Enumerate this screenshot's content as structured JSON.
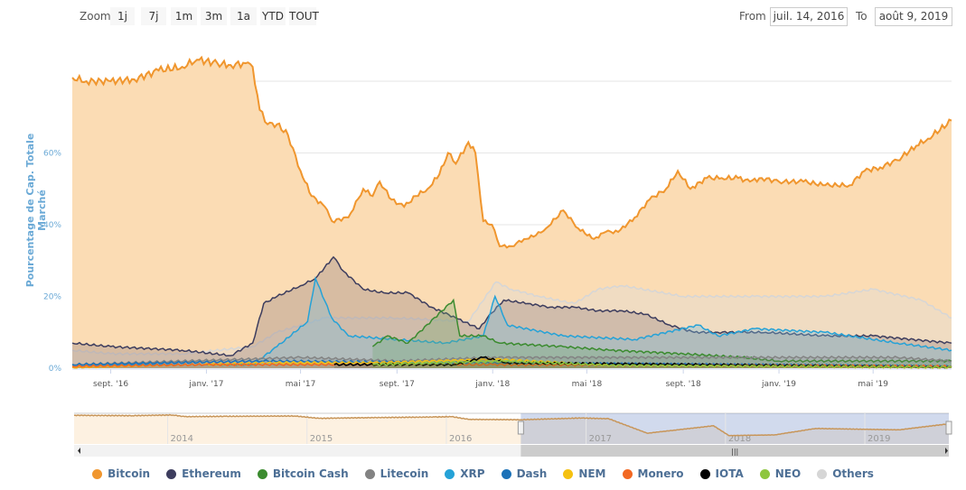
{
  "toolbar": {
    "zoom_label": "Zoom",
    "buttons": [
      "1j",
      "7j",
      "1m",
      "3m",
      "1a",
      "YTD",
      "TOUT"
    ],
    "from_label": "From",
    "from_value": "juil. 14, 2016",
    "to_label": "To",
    "to_value": "août 9, 2019"
  },
  "chart_data": {
    "type": "area",
    "title": "",
    "ylabel": "Pourcentage de Cap. Totale Marché",
    "xlabel": "",
    "xlim": [
      "2016-07-14",
      "2019-08-09"
    ],
    "ylim": [
      0,
      80
    ],
    "yticks": [
      {
        "v": 0,
        "label": "0%"
      },
      {
        "v": 20,
        "label": "20%"
      },
      {
        "v": 40,
        "label": "40%"
      },
      {
        "v": 60,
        "label": "60%"
      }
    ],
    "xticks": [
      {
        "d": "2016-09-01",
        "label": "sept. '16"
      },
      {
        "d": "2017-01-01",
        "label": "janv. '17"
      },
      {
        "d": "2017-05-01",
        "label": "mai '17"
      },
      {
        "d": "2017-09-01",
        "label": "sept. '17"
      },
      {
        "d": "2018-01-01",
        "label": "janv. '18"
      },
      {
        "d": "2018-05-01",
        "label": "mai '18"
      },
      {
        "d": "2018-09-01",
        "label": "sept. '18"
      },
      {
        "d": "2019-01-01",
        "label": "janv. '19"
      },
      {
        "d": "2019-05-01",
        "label": "mai '19"
      }
    ],
    "grid": true,
    "legend_position": "bottom",
    "series": [
      {
        "name": "Bitcoin",
        "color": "#f0962e",
        "fill": "#fbdcb4",
        "points": [
          [
            "2016-07-14",
            81
          ],
          [
            "2016-08-01",
            80
          ],
          [
            "2016-09-01",
            80
          ],
          [
            "2016-10-01",
            80.5
          ],
          [
            "2016-11-01",
            83
          ],
          [
            "2016-12-01",
            84
          ],
          [
            "2016-12-20",
            86
          ],
          [
            "2017-01-15",
            85
          ],
          [
            "2017-02-01",
            84.5
          ],
          [
            "2017-02-20",
            85
          ],
          [
            "2017-03-01",
            84
          ],
          [
            "2017-03-10",
            72
          ],
          [
            "2017-03-20",
            68
          ],
          [
            "2017-04-01",
            68
          ],
          [
            "2017-04-15",
            65
          ],
          [
            "2017-05-01",
            55
          ],
          [
            "2017-05-15",
            48
          ],
          [
            "2017-06-01",
            45
          ],
          [
            "2017-06-10",
            41
          ],
          [
            "2017-07-01",
            42
          ],
          [
            "2017-07-20",
            50
          ],
          [
            "2017-08-01",
            48
          ],
          [
            "2017-08-10",
            52
          ],
          [
            "2017-08-25",
            47
          ],
          [
            "2017-09-10",
            45
          ],
          [
            "2017-09-25",
            48
          ],
          [
            "2017-10-10",
            50
          ],
          [
            "2017-10-25",
            54
          ],
          [
            "2017-11-05",
            60
          ],
          [
            "2017-11-15",
            57
          ],
          [
            "2017-12-01",
            63
          ],
          [
            "2017-12-10",
            60
          ],
          [
            "2017-12-20",
            41
          ],
          [
            "2017-12-31",
            40
          ],
          [
            "2018-01-10",
            34
          ],
          [
            "2018-01-25",
            34
          ],
          [
            "2018-02-10",
            36
          ],
          [
            "2018-02-25",
            37
          ],
          [
            "2018-03-10",
            39
          ],
          [
            "2018-04-01",
            44
          ],
          [
            "2018-04-20",
            39
          ],
          [
            "2018-05-10",
            36
          ],
          [
            "2018-05-25",
            38
          ],
          [
            "2018-06-10",
            38
          ],
          [
            "2018-07-01",
            42
          ],
          [
            "2018-07-20",
            47
          ],
          [
            "2018-08-10",
            50
          ],
          [
            "2018-08-25",
            55
          ],
          [
            "2018-09-10",
            50
          ],
          [
            "2018-10-01",
            53
          ],
          [
            "2018-10-20",
            53
          ],
          [
            "2018-11-10",
            53
          ],
          [
            "2018-11-25",
            52
          ],
          [
            "2018-12-10",
            53
          ],
          [
            "2019-01-01",
            52
          ],
          [
            "2019-02-01",
            52
          ],
          [
            "2019-03-01",
            51
          ],
          [
            "2019-04-01",
            51
          ],
          [
            "2019-04-20",
            55
          ],
          [
            "2019-05-10",
            56
          ],
          [
            "2019-06-01",
            58
          ],
          [
            "2019-06-25",
            62
          ],
          [
            "2019-07-10",
            64
          ],
          [
            "2019-08-09",
            69
          ]
        ]
      },
      {
        "name": "Others",
        "color": "#d6d6d6",
        "fill": "rgba(220,220,220,0.35)",
        "points": [
          [
            "2016-07-14",
            5
          ],
          [
            "2016-09-01",
            4
          ],
          [
            "2016-12-01",
            4
          ],
          [
            "2017-03-01",
            6
          ],
          [
            "2017-04-01",
            10
          ],
          [
            "2017-06-01",
            14
          ],
          [
            "2017-09-01",
            14
          ],
          [
            "2017-12-01",
            13
          ],
          [
            "2018-01-05",
            24
          ],
          [
            "2018-01-25",
            22
          ],
          [
            "2018-03-01",
            20
          ],
          [
            "2018-04-15",
            18
          ],
          [
            "2018-05-15",
            22
          ],
          [
            "2018-06-15",
            23
          ],
          [
            "2018-09-01",
            20
          ],
          [
            "2018-12-01",
            20
          ],
          [
            "2019-03-01",
            20
          ],
          [
            "2019-05-01",
            22
          ],
          [
            "2019-07-01",
            19
          ],
          [
            "2019-08-09",
            14
          ]
        ]
      },
      {
        "name": "Ethereum",
        "color": "#3d3d5e",
        "fill": "rgba(150,130,130,0.35)",
        "points": [
          [
            "2016-07-14",
            7
          ],
          [
            "2016-09-01",
            6
          ],
          [
            "2016-12-01",
            5
          ],
          [
            "2017-02-01",
            3.5
          ],
          [
            "2017-03-01",
            7
          ],
          [
            "2017-03-15",
            18
          ],
          [
            "2017-04-01",
            20
          ],
          [
            "2017-05-01",
            23
          ],
          [
            "2017-05-20",
            25
          ],
          [
            "2017-06-12",
            31
          ],
          [
            "2017-06-25",
            27
          ],
          [
            "2017-07-20",
            22
          ],
          [
            "2017-08-15",
            21
          ],
          [
            "2017-09-15",
            21
          ],
          [
            "2017-10-15",
            17
          ],
          [
            "2017-11-15",
            14
          ],
          [
            "2017-12-15",
            11
          ],
          [
            "2017-12-25",
            14
          ],
          [
            "2018-01-15",
            19
          ],
          [
            "2018-02-15",
            18
          ],
          [
            "2018-03-15",
            17
          ],
          [
            "2018-04-15",
            17
          ],
          [
            "2018-05-15",
            16
          ],
          [
            "2018-06-15",
            16
          ],
          [
            "2018-07-15",
            15
          ],
          [
            "2018-08-15",
            12
          ],
          [
            "2018-09-15",
            10
          ],
          [
            "2018-10-15",
            10
          ],
          [
            "2018-11-15",
            10
          ],
          [
            "2018-12-15",
            10
          ],
          [
            "2019-03-01",
            9
          ],
          [
            "2019-05-01",
            9
          ],
          [
            "2019-08-09",
            7
          ]
        ]
      },
      {
        "name": "XRP",
        "color": "#25a2d7",
        "fill": "rgba(120,190,220,0.35)",
        "points": [
          [
            "2016-07-14",
            1
          ],
          [
            "2017-03-01",
            1
          ],
          [
            "2017-04-01",
            6
          ],
          [
            "2017-05-10",
            13
          ],
          [
            "2017-05-20",
            25
          ],
          [
            "2017-06-10",
            14
          ],
          [
            "2017-07-01",
            9
          ],
          [
            "2017-09-01",
            8
          ],
          [
            "2017-11-01",
            7
          ],
          [
            "2017-12-20",
            9
          ],
          [
            "2018-01-04",
            20
          ],
          [
            "2018-01-20",
            12
          ],
          [
            "2018-04-01",
            9
          ],
          [
            "2018-07-01",
            8
          ],
          [
            "2018-09-20",
            12
          ],
          [
            "2018-10-15",
            9
          ],
          [
            "2018-12-01",
            11
          ],
          [
            "2019-03-01",
            10
          ],
          [
            "2019-06-01",
            7
          ],
          [
            "2019-08-09",
            5
          ]
        ]
      },
      {
        "name": "Bitcoin Cash",
        "color": "#3b8b2f",
        "fill": "rgba(110,170,110,0.3)",
        "points": [
          [
            "2017-08-01",
            6
          ],
          [
            "2017-08-20",
            9
          ],
          [
            "2017-09-15",
            7
          ],
          [
            "2017-11-12",
            19
          ],
          [
            "2017-11-20",
            9
          ],
          [
            "2017-12-20",
            9
          ],
          [
            "2018-01-10",
            7
          ],
          [
            "2018-04-01",
            6
          ],
          [
            "2018-06-01",
            5
          ],
          [
            "2018-09-01",
            4
          ],
          [
            "2018-11-15",
            3
          ],
          [
            "2019-01-01",
            2
          ],
          [
            "2019-08-09",
            2
          ]
        ]
      },
      {
        "name": "Litecoin",
        "color": "#838383",
        "fill": "rgba(130,130,130,0.2)",
        "points": [
          [
            "2016-07-14",
            1
          ],
          [
            "2017-05-01",
            3
          ],
          [
            "2017-09-01",
            2
          ],
          [
            "2018-01-01",
            3
          ],
          [
            "2019-06-01",
            3
          ],
          [
            "2019-08-09",
            2
          ]
        ]
      },
      {
        "name": "Dash",
        "color": "#1c72b8",
        "fill": "rgba(28,114,184,0.15)",
        "points": [
          [
            "2016-07-14",
            1
          ],
          [
            "2017-03-15",
            2
          ],
          [
            "2017-12-01",
            1.5
          ],
          [
            "2019-08-09",
            0.5
          ]
        ]
      },
      {
        "name": "NEM",
        "color": "#f5c111",
        "fill": "rgba(245,193,17,0.15)",
        "points": [
          [
            "2016-07-14",
            0.2
          ],
          [
            "2017-04-01",
            1.5
          ],
          [
            "2017-08-01",
            1.5
          ],
          [
            "2018-01-05",
            2.5
          ],
          [
            "2018-06-01",
            0.8
          ],
          [
            "2019-08-09",
            0.2
          ]
        ]
      },
      {
        "name": "Monero",
        "color": "#f26822",
        "fill": "rgba(242,104,34,0.15)",
        "points": [
          [
            "2016-07-14",
            0.5
          ],
          [
            "2017-01-01",
            1
          ],
          [
            "2018-01-01",
            1
          ],
          [
            "2019-08-09",
            0.5
          ]
        ]
      },
      {
        "name": "IOTA",
        "color": "#000000",
        "fill": "rgba(0,0,0,0.1)",
        "points": [
          [
            "2017-06-13",
            1
          ],
          [
            "2017-11-15",
            1
          ],
          [
            "2017-12-20",
            3
          ],
          [
            "2018-01-20",
            1.5
          ],
          [
            "2019-08-09",
            0.3
          ]
        ]
      },
      {
        "name": "NEO",
        "color": "#8ec63f",
        "fill": "rgba(142,198,63,0.15)",
        "points": [
          [
            "2017-08-01",
            1
          ],
          [
            "2018-01-15",
            2
          ],
          [
            "2018-06-01",
            0.8
          ],
          [
            "2019-08-09",
            0.3
          ]
        ]
      }
    ],
    "navigator": {
      "xlim": [
        "2013-05-01",
        "2019-08-09"
      ],
      "selected": [
        "2016-07-14",
        "2019-08-09"
      ],
      "xticks": [
        "2014",
        "2015",
        "2016",
        "2017",
        "2018",
        "2019"
      ],
      "points": [
        [
          "2013-05-01",
          94
        ],
        [
          "2013-10-01",
          93
        ],
        [
          "2014-01-15",
          95
        ],
        [
          "2014-02-15",
          90
        ],
        [
          "2014-06-01",
          91
        ],
        [
          "2014-12-01",
          92
        ],
        [
          "2015-02-01",
          85
        ],
        [
          "2015-06-01",
          87
        ],
        [
          "2015-12-01",
          89
        ],
        [
          "2016-01-15",
          90
        ],
        [
          "2016-03-01",
          82
        ],
        [
          "2016-07-14",
          81
        ],
        [
          "2016-12-20",
          86
        ],
        [
          "2017-03-01",
          84
        ],
        [
          "2017-06-10",
          41
        ],
        [
          "2017-12-01",
          63
        ],
        [
          "2018-01-10",
          34
        ],
        [
          "2018-05-10",
          36
        ],
        [
          "2018-08-25",
          55
        ],
        [
          "2019-04-01",
          51
        ],
        [
          "2019-08-09",
          69
        ]
      ]
    }
  }
}
